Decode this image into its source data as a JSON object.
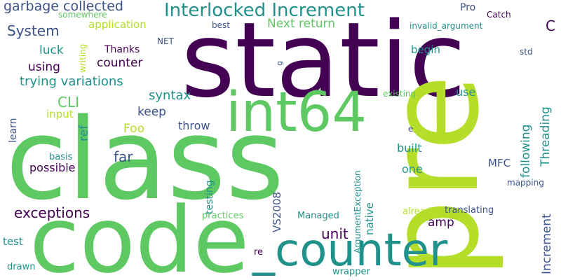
{
  "palette": {
    "dark_purple": "#440154",
    "indigo": "#3b528b",
    "teal": "#21918c",
    "green": "#5ec962",
    "lime": "#b5de2b"
  },
  "words": {
    "static": "static",
    "class": "class",
    "code": "code",
    "pre": "pre",
    "int64": "int64",
    "counter_big": "_counter",
    "interlocked_increment": "Interlocked Increment",
    "garbage_collected": "garbage collected",
    "system": "System",
    "application": "application",
    "next_return": "Next return",
    "luck": "luck",
    "thanks": "Thanks",
    "using": "using",
    "counter_small": "counter",
    "trying_variations": "trying variations",
    "cli": "CLI",
    "syntax": "syntax",
    "keep": "keep",
    "foo": "Foo",
    "throw": "throw",
    "ref": "ref",
    "input": "input",
    "learn": "learn",
    "far": "far",
    "possible": "possible",
    "built": "built",
    "one": "one",
    "basis": "basis",
    "testing": "testing",
    "mfc": "MFC",
    "following": "following",
    "threading": "Threading",
    "increment": "Increment",
    "exceptions": "exceptions",
    "unit": "unit",
    "amp": "amp",
    "vs2008": "VS2008",
    "native": "native",
    "argument_exception": "ArgumentException",
    "practices": "practices",
    "managed": "Managed",
    "already": "already",
    "translating": "translating",
    "test": "test",
    "re": "re",
    "drawn": "drawn",
    "wrapper": "wrapper",
    "mapping": "mapping",
    "somewhere": "somewhere",
    "writing": "writing",
    "net": "NET",
    "best": "best",
    "pro": "Pro",
    "catch": "Catch",
    "invalid_argument": "invalid_argument",
    "c": "C",
    "begin": "begin",
    "g": "g",
    "std": "std",
    "use": "use",
    "existing": "existing",
    "e": "e"
  }
}
